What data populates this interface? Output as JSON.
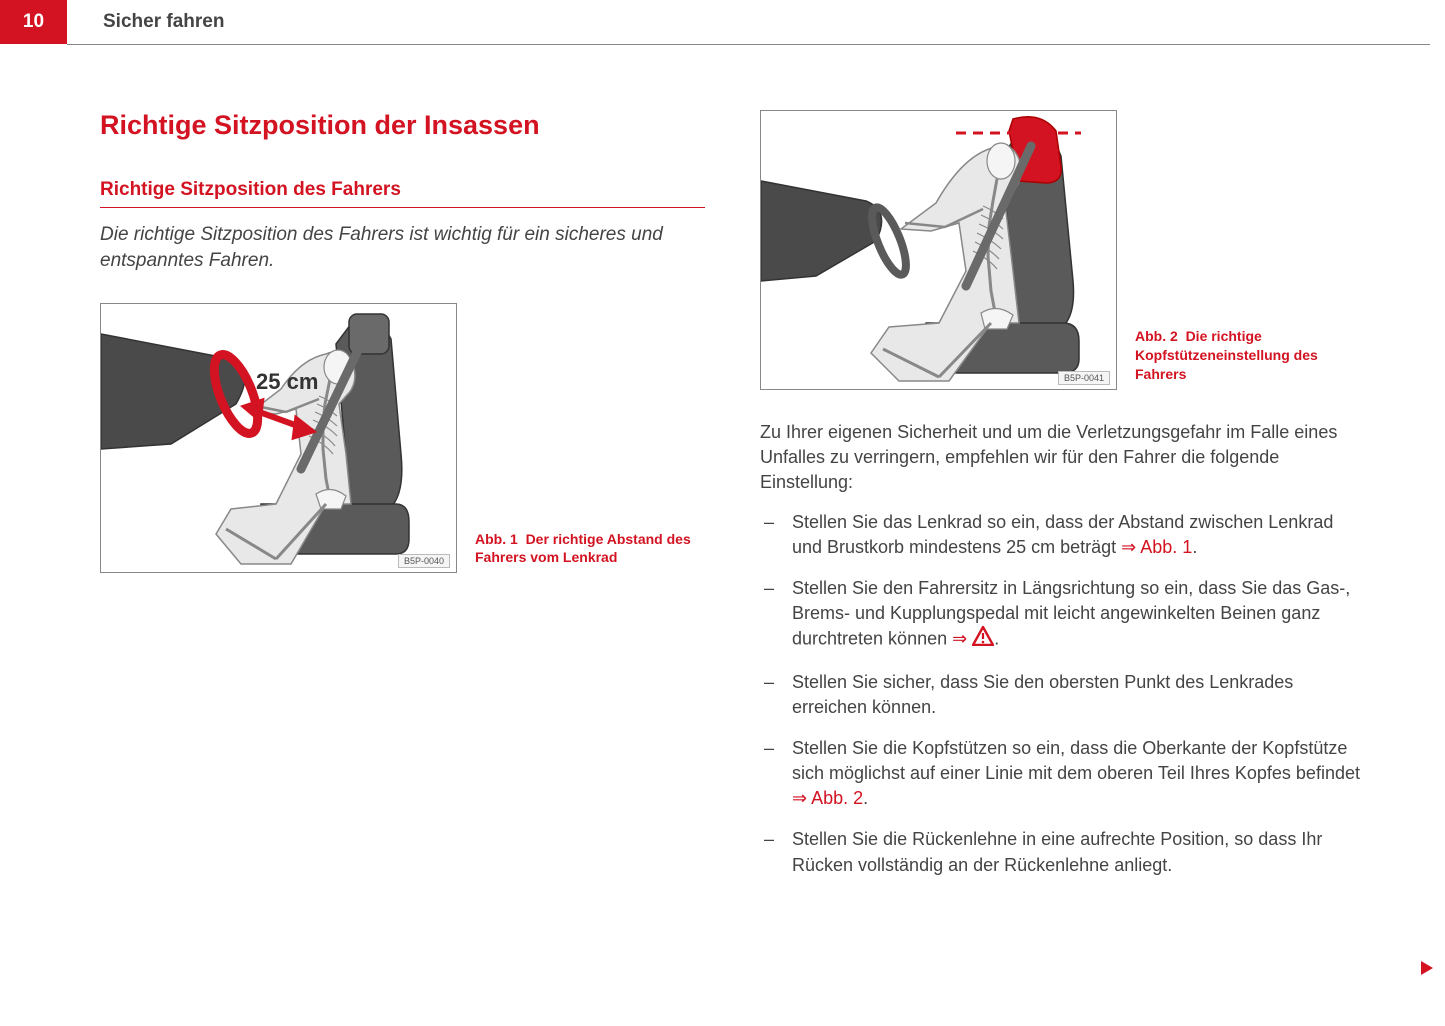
{
  "header": {
    "page_number": "10",
    "title": "Sicher fahren"
  },
  "left": {
    "main_heading": "Richtige Sitzposition der Insassen",
    "sub_heading": "Richtige Sitzposition des Fahrers",
    "intro": "Die richtige Sitzposition des Fahrers ist wichtig für ein sicheres und entspanntes Fahren.",
    "fig1": {
      "distance_label": "25 cm",
      "image_code": "B5P-0040",
      "caption_prefix": "Abb. 1",
      "caption_text": "Der richtige Abstand des Fahrers vom Lenkrad"
    }
  },
  "right": {
    "fig2": {
      "image_code": "B5P-0041",
      "caption_prefix": "Abb. 2",
      "caption_text": "Die richtige Kopfstützeneinstellung des Fahrers"
    },
    "body": "Zu Ihrer eigenen Sicherheit und um die Verletzungsgefahr im Falle eines Unfalles zu verringern, empfehlen wir für den Fahrer die folgende Einstellung:",
    "bullets": [
      {
        "pre": "Stellen Sie das Lenkrad so ein, dass der Abstand zwischen Lenkrad und Brustkorb mindestens 25 cm beträgt ",
        "ref": "⇒ Abb. 1",
        "post": "."
      },
      {
        "pre": "Stellen Sie den Fahrersitz in Längsrichtung so ein, dass Sie das Gas-, Brems- und Kupplungspedal mit leicht angewinkelten Beinen ganz durchtreten können ",
        "ref": "⇒",
        "warn": true,
        "post": "."
      },
      {
        "pre": "Stellen Sie sicher, dass Sie den obersten Punkt des Lenkrades erreichen können.",
        "ref": "",
        "post": ""
      },
      {
        "pre": "Stellen Sie die Kopfstützen so ein, dass die Oberkante der Kopfstütze sich möglichst auf einer Linie mit dem oberen Teil Ihres Kopfes befindet ",
        "ref": "⇒ Abb. 2",
        "post": "."
      },
      {
        "pre": "Stellen Sie die Rückenlehne in eine aufrechte Position, so dass Ihr Rücken vollständig an der Rückenlehne anliegt.",
        "ref": "",
        "post": ""
      }
    ]
  },
  "colors": {
    "accent": "#d31321",
    "text": "#444444",
    "seat_dark": "#5a5a5a",
    "seat_light": "#bfbfbf",
    "skeleton_fill": "#e8e8e8"
  }
}
